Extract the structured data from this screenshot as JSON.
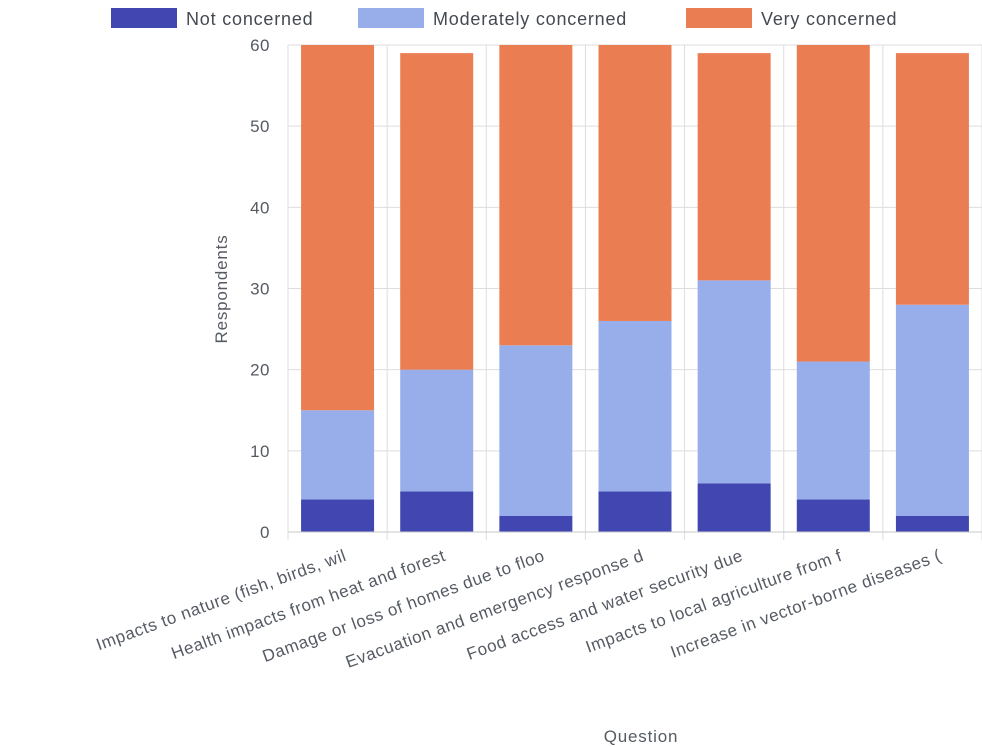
{
  "chart_data": {
    "type": "bar",
    "stacked": true,
    "categories": [
      "Impacts to nature (fish, birds, wil",
      "Health impacts from heat and forest",
      "Damage or loss of homes due to floo",
      "Evacuation and emergency response d",
      "Food access and water security due",
      "Impacts to local agriculture from f",
      "Increase in vector-borne diseases ("
    ],
    "series": [
      {
        "name": "Not concerned",
        "color": "#4146b0",
        "values": [
          4,
          5,
          2,
          5,
          6,
          4,
          2
        ]
      },
      {
        "name": "Moderately concerned",
        "color": "#97aeea",
        "values": [
          11,
          15,
          21,
          21,
          25,
          17,
          26
        ]
      },
      {
        "name": "Very concerned",
        "color": "#eb7d52",
        "values": [
          45,
          39,
          37,
          34,
          28,
          39,
          31
        ]
      }
    ],
    "xlabel": "Question",
    "ylabel": "Respondents",
    "ylim": [
      0,
      60
    ],
    "yticks": [
      0,
      10,
      20,
      30,
      40,
      50,
      60
    ],
    "grid": true,
    "legend_position": "top"
  }
}
